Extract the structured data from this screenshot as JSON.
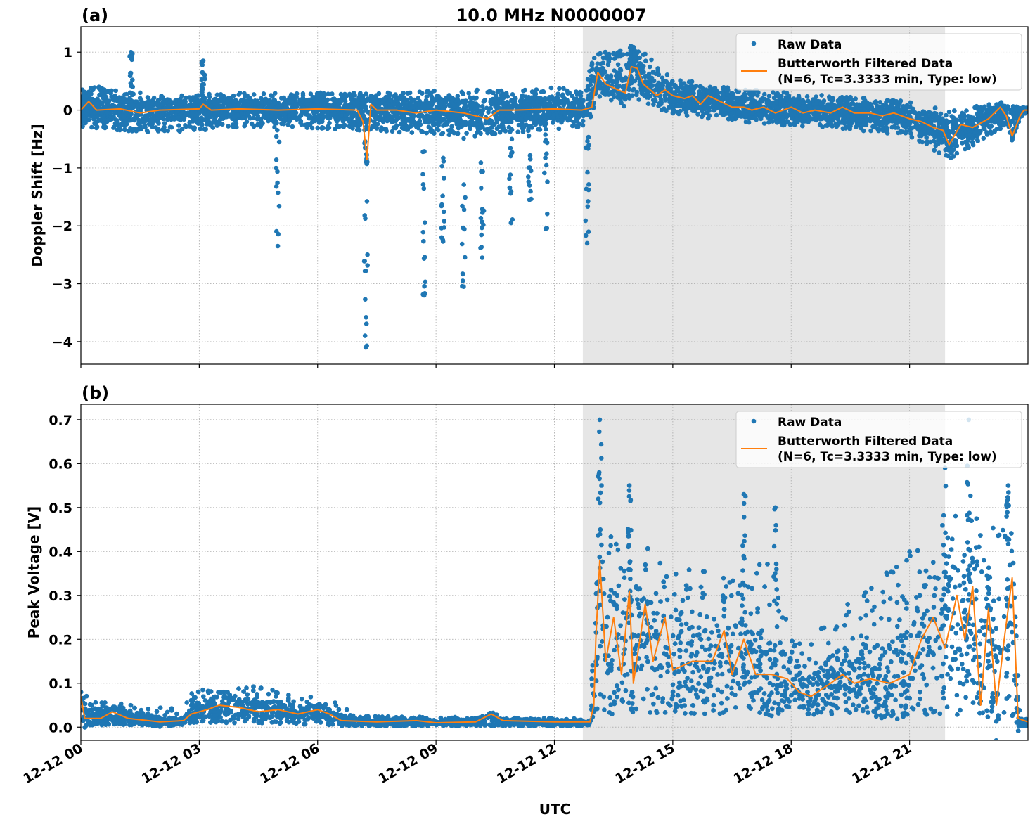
{
  "title": "10.0 MHz N0000007",
  "colors": {
    "raw": "#1f77b4",
    "filtered": "#ff7f0e",
    "shade": "#e6e6e6",
    "grid": "#b0b0b0"
  },
  "x_axis": {
    "label": "UTC",
    "range_hours": [
      0,
      24
    ],
    "tick_hours": [
      0,
      3,
      6,
      9,
      12,
      15,
      18,
      21
    ],
    "tick_labels": [
      "12-12 00",
      "12-12 03",
      "12-12 06",
      "12-12 09",
      "12-12 12",
      "12-12 15",
      "12-12 18",
      "12-12 21"
    ]
  },
  "shaded_span_hours": [
    12.72,
    21.9
  ],
  "legend": {
    "raw_label": "Raw Data",
    "filtered_label_line1": "Butterworth Filtered Data",
    "filtered_label_line2": "(N=6, Tc=3.3333 min, Type: low)",
    "placement": "upper right"
  },
  "chart_data": [
    {
      "type": "scatter+line",
      "panel_label": "(a)",
      "ylabel": "Doppler Shift [Hz]",
      "ylim": [
        -4.39,
        1.44
      ],
      "y_ticks": [
        1,
        0,
        -1,
        -2,
        -3,
        -4
      ],
      "y_tick_labels": [
        "1",
        "0",
        "−1",
        "−2",
        "−3",
        "−4"
      ],
      "grid": true,
      "filtered": [
        [
          0,
          0
        ],
        [
          0.2,
          0.15
        ],
        [
          0.4,
          0.0
        ],
        [
          1,
          0.02
        ],
        [
          1.5,
          -0.05
        ],
        [
          2,
          0.0
        ],
        [
          3,
          0.02
        ],
        [
          3.1,
          0.1
        ],
        [
          3.3,
          0.0
        ],
        [
          4,
          0.02
        ],
        [
          5,
          0.0
        ],
        [
          6,
          0.02
        ],
        [
          7,
          0.0
        ],
        [
          7.15,
          -0.2
        ],
        [
          7.25,
          -0.85
        ],
        [
          7.35,
          0.1
        ],
        [
          7.5,
          0.0
        ],
        [
          8,
          0.0
        ],
        [
          8.5,
          -0.05
        ],
        [
          9,
          0.0
        ],
        [
          9.7,
          -0.05
        ],
        [
          10,
          -0.1
        ],
        [
          10.3,
          -0.15
        ],
        [
          10.6,
          0.0
        ],
        [
          11,
          0.0
        ],
        [
          12,
          0.02
        ],
        [
          12.7,
          0.0
        ],
        [
          12.95,
          0.05
        ],
        [
          13.1,
          0.65
        ],
        [
          13.3,
          0.45
        ],
        [
          13.6,
          0.35
        ],
        [
          13.8,
          0.3
        ],
        [
          13.95,
          0.75
        ],
        [
          14.1,
          0.72
        ],
        [
          14.25,
          0.45
        ],
        [
          14.6,
          0.25
        ],
        [
          14.8,
          0.35
        ],
        [
          15,
          0.25
        ],
        [
          15.3,
          0.2
        ],
        [
          15.5,
          0.25
        ],
        [
          15.7,
          0.1
        ],
        [
          15.9,
          0.25
        ],
        [
          16.2,
          0.15
        ],
        [
          16.5,
          0.05
        ],
        [
          16.8,
          0.05
        ],
        [
          17,
          0.0
        ],
        [
          17.3,
          0.05
        ],
        [
          17.6,
          -0.05
        ],
        [
          18,
          0.05
        ],
        [
          18.3,
          -0.05
        ],
        [
          18.6,
          0.0
        ],
        [
          19,
          -0.05
        ],
        [
          19.3,
          0.05
        ],
        [
          19.6,
          -0.05
        ],
        [
          20,
          -0.05
        ],
        [
          20.3,
          -0.1
        ],
        [
          20.6,
          -0.05
        ],
        [
          21,
          -0.15
        ],
        [
          21.3,
          -0.2
        ],
        [
          21.6,
          -0.3
        ],
        [
          21.85,
          -0.35
        ],
        [
          22.0,
          -0.6
        ],
        [
          22.3,
          -0.25
        ],
        [
          22.6,
          -0.3
        ],
        [
          23.0,
          -0.15
        ],
        [
          23.3,
          0.05
        ],
        [
          23.45,
          -0.1
        ],
        [
          23.6,
          -0.45
        ],
        [
          23.8,
          -0.1
        ],
        [
          23.9,
          0.0
        ],
        [
          24,
          0.0
        ]
      ],
      "raw_band": [
        [
          0,
          -0.3,
          0.45
        ],
        [
          2,
          -0.4,
          0.25
        ],
        [
          4,
          -0.3,
          0.3
        ],
        [
          7,
          -0.35,
          0.3
        ],
        [
          10,
          -0.45,
          0.35
        ],
        [
          12.7,
          -0.3,
          0.4
        ],
        [
          13,
          0.2,
          0.95
        ],
        [
          14,
          0.2,
          1.15
        ],
        [
          15,
          -0.1,
          0.55
        ],
        [
          17,
          -0.25,
          0.35
        ],
        [
          19,
          -0.3,
          0.25
        ],
        [
          21,
          -0.45,
          0.15
        ],
        [
          22,
          -0.85,
          0.0
        ],
        [
          23,
          -0.45,
          0.1
        ],
        [
          24,
          -0.05,
          0.05
        ]
      ],
      "raw_spikes": [
        [
          1.27,
          1.0
        ],
        [
          3.1,
          0.85
        ],
        [
          4.99,
          -2.35
        ],
        [
          7.22,
          -4.1
        ],
        [
          8.7,
          -3.2
        ],
        [
          9.18,
          -2.27
        ],
        [
          9.7,
          -3.05
        ],
        [
          10.17,
          -2.55
        ],
        [
          10.9,
          -1.95
        ],
        [
          11.37,
          -1.55
        ],
        [
          11.78,
          -2.05
        ],
        [
          12.83,
          -2.3
        ]
      ]
    },
    {
      "type": "scatter+line",
      "panel_label": "(b)",
      "ylabel": "Peak Voltage [V]",
      "ylim": [
        -0.03,
        0.735
      ],
      "y_ticks": [
        0,
        0.1,
        0.2,
        0.3,
        0.4,
        0.5,
        0.6,
        0.7
      ],
      "y_tick_labels": [
        "0.0",
        "0.1",
        "0.2",
        "0.3",
        "0.4",
        "0.5",
        "0.6",
        "0.7"
      ],
      "grid": true,
      "filtered": [
        [
          0,
          0.07
        ],
        [
          0.1,
          0.02
        ],
        [
          0.5,
          0.02
        ],
        [
          0.8,
          0.035
        ],
        [
          1.2,
          0.02
        ],
        [
          2,
          0.012
        ],
        [
          2.6,
          0.015
        ],
        [
          2.8,
          0.03
        ],
        [
          3.2,
          0.04
        ],
        [
          3.5,
          0.05
        ],
        [
          4,
          0.045
        ],
        [
          4.5,
          0.035
        ],
        [
          5,
          0.04
        ],
        [
          5.5,
          0.03
        ],
        [
          6,
          0.04
        ],
        [
          6.3,
          0.03
        ],
        [
          6.6,
          0.015
        ],
        [
          7.5,
          0.012
        ],
        [
          8.5,
          0.015
        ],
        [
          9,
          0.01
        ],
        [
          10,
          0.012
        ],
        [
          10.4,
          0.03
        ],
        [
          10.7,
          0.015
        ],
        [
          12,
          0.012
        ],
        [
          12.9,
          0.012
        ],
        [
          13.0,
          0.05
        ],
        [
          13.05,
          0.2
        ],
        [
          13.15,
          0.38
        ],
        [
          13.3,
          0.15
        ],
        [
          13.5,
          0.25
        ],
        [
          13.7,
          0.12
        ],
        [
          13.9,
          0.31
        ],
        [
          14.0,
          0.1
        ],
        [
          14.3,
          0.28
        ],
        [
          14.5,
          0.15
        ],
        [
          14.8,
          0.25
        ],
        [
          15,
          0.13
        ],
        [
          15.5,
          0.15
        ],
        [
          16,
          0.15
        ],
        [
          16.3,
          0.22
        ],
        [
          16.5,
          0.12
        ],
        [
          16.8,
          0.2
        ],
        [
          17.1,
          0.12
        ],
        [
          17.5,
          0.12
        ],
        [
          17.9,
          0.11
        ],
        [
          18.2,
          0.08
        ],
        [
          18.5,
          0.07
        ],
        [
          19,
          0.1
        ],
        [
          19.3,
          0.12
        ],
        [
          19.6,
          0.1
        ],
        [
          20,
          0.11
        ],
        [
          20.5,
          0.1
        ],
        [
          21,
          0.12
        ],
        [
          21.3,
          0.2
        ],
        [
          21.6,
          0.25
        ],
        [
          21.9,
          0.18
        ],
        [
          22.2,
          0.3
        ],
        [
          22.4,
          0.2
        ],
        [
          22.6,
          0.32
        ],
        [
          22.8,
          0.05
        ],
        [
          23.0,
          0.27
        ],
        [
          23.2,
          0.05
        ],
        [
          23.4,
          0.2
        ],
        [
          23.6,
          0.34
        ],
        [
          23.75,
          0.02
        ],
        [
          24,
          0.012
        ]
      ],
      "raw_band": [
        [
          0,
          0.005,
          0.1
        ],
        [
          0.2,
          0.005,
          0.06
        ],
        [
          2.6,
          0.005,
          0.04
        ],
        [
          2.8,
          0.01,
          0.09
        ],
        [
          4,
          0.01,
          0.1
        ],
        [
          6.5,
          0.005,
          0.06
        ],
        [
          7,
          0.003,
          0.025
        ],
        [
          12.9,
          0.003,
          0.02
        ],
        [
          13.1,
          0.03,
          0.45
        ],
        [
          14,
          0.03,
          0.42
        ],
        [
          16,
          0.03,
          0.35
        ],
        [
          17.5,
          0.03,
          0.38
        ],
        [
          18.3,
          0.03,
          0.18
        ],
        [
          19,
          0.03,
          0.25
        ],
        [
          21,
          0.02,
          0.4
        ],
        [
          22,
          0.03,
          0.5
        ],
        [
          23.6,
          0.01,
          0.45
        ],
        [
          23.8,
          0.003,
          0.02
        ],
        [
          24,
          0.003,
          0.02
        ]
      ],
      "raw_spikes": [
        [
          13.15,
          0.7
        ],
        [
          13.9,
          0.55
        ],
        [
          16.8,
          0.53
        ],
        [
          17.6,
          0.5
        ],
        [
          21.9,
          0.59
        ],
        [
          22.5,
          0.7
        ],
        [
          23.5,
          0.55
        ]
      ]
    }
  ]
}
